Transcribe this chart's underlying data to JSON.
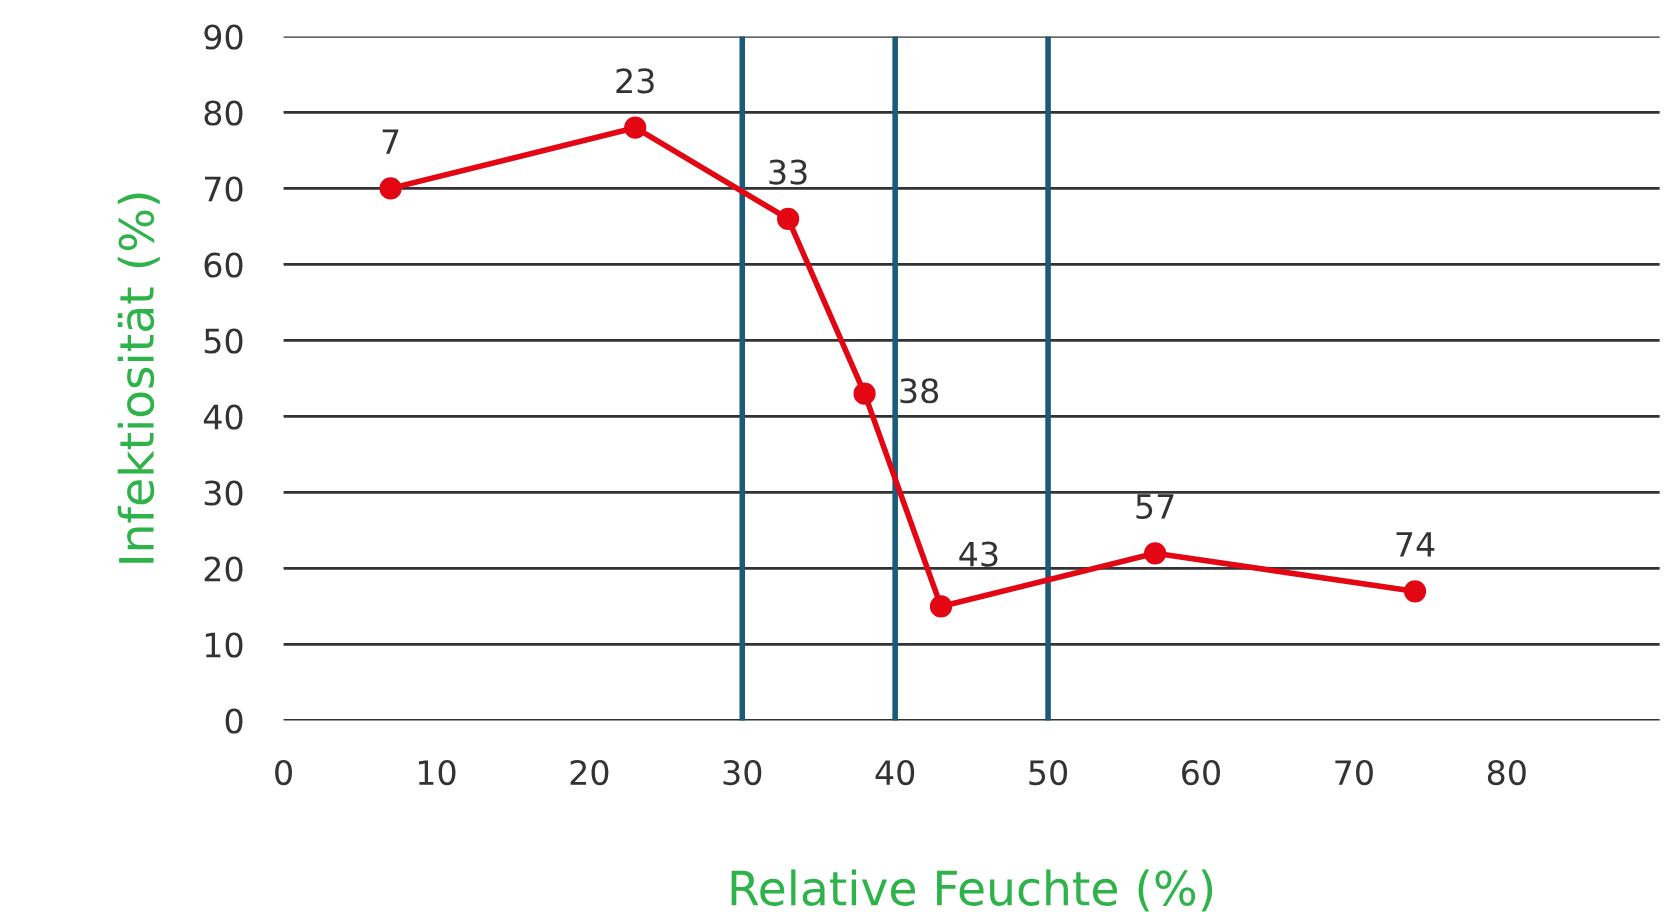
{
  "chart_data": {
    "type": "line",
    "xlabel": "Relative Feuchte (%)",
    "ylabel": "Infektiosität (%)",
    "x": [
      7,
      23,
      33,
      38,
      43,
      57,
      74
    ],
    "series": [
      {
        "color": "#e30613",
        "values": [
          70,
          78,
          66,
          43,
          15,
          22,
          17
        ]
      }
    ],
    "xlim": [
      0,
      90
    ],
    "ylim": [
      0,
      90
    ],
    "xticks": [
      0,
      10,
      20,
      30,
      40,
      50,
      60,
      70,
      80
    ],
    "yticks": [
      0,
      10,
      20,
      30,
      40,
      50,
      60,
      70,
      80,
      90
    ],
    "grid": "y",
    "marker": "circle",
    "line_style": "solid",
    "ref_lines": [
      {
        "axis": "x",
        "value": 30,
        "color": "#1c5a7a"
      },
      {
        "axis": "x",
        "value": 40,
        "color": "#1c5a7a"
      },
      {
        "axis": "x",
        "value": 50,
        "color": "#1c5a7a"
      }
    ],
    "annotations": [
      {
        "text": "7",
        "x": 7,
        "y": 70
      },
      {
        "text": "23",
        "x": 23,
        "y": 78
      },
      {
        "text": "33",
        "x": 33,
        "y": 66
      },
      {
        "text": "38",
        "x": 38,
        "y": 43
      },
      {
        "text": "43",
        "x": 43,
        "y": 15
      },
      {
        "text": "57",
        "x": 57,
        "y": 22
      },
      {
        "text": "74",
        "x": 74,
        "y": 17
      }
    ]
  }
}
